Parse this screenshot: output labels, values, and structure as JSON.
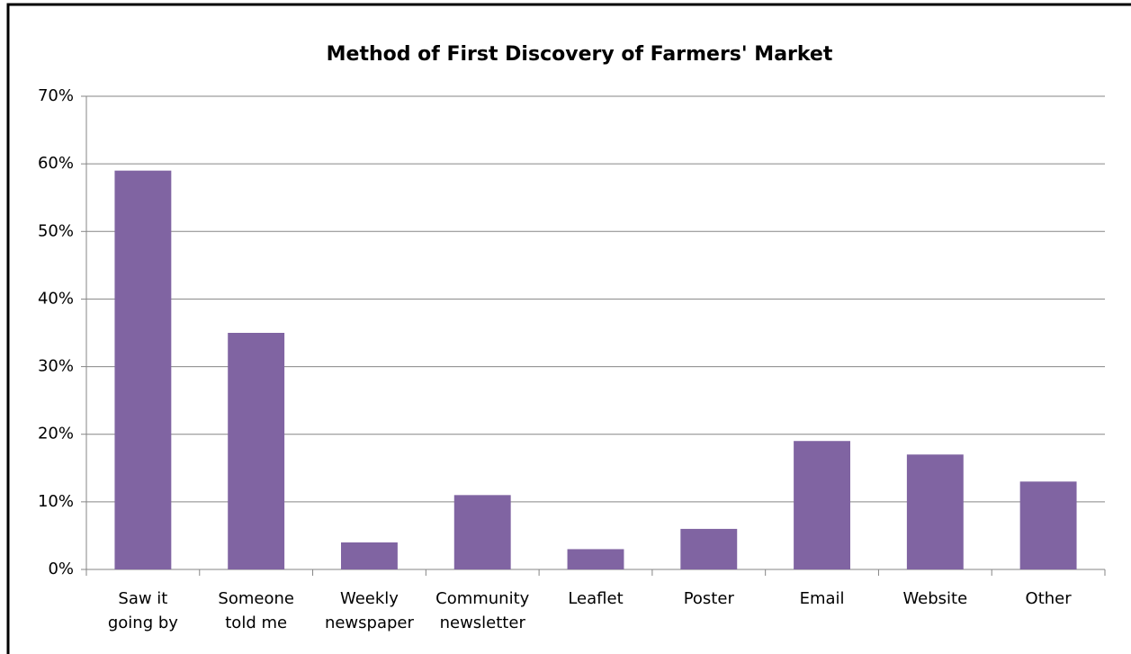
{
  "chart_data": {
    "type": "bar",
    "title": "Method of First Discovery of Farmers' Market",
    "categories": [
      "Saw it\ngoing by",
      "Someone\ntold me",
      "Weekly\nnewspaper",
      "Community\nnewsletter",
      "Leaflet",
      "Poster",
      "Email",
      "Website",
      "Other"
    ],
    "values": [
      59,
      35,
      4,
      11,
      3,
      6,
      19,
      17,
      13
    ],
    "color": "#8064a2",
    "ylim": [
      0,
      70
    ],
    "yticks": [
      {
        "value": 0,
        "label": "0%"
      },
      {
        "value": 10,
        "label": "10%"
      },
      {
        "value": 20,
        "label": "20%"
      },
      {
        "value": 30,
        "label": "30%"
      },
      {
        "value": 40,
        "label": "40%"
      },
      {
        "value": 50,
        "label": "50%"
      },
      {
        "value": 60,
        "label": "60%"
      },
      {
        "value": 70,
        "label": "70%"
      }
    ],
    "grid": true
  }
}
